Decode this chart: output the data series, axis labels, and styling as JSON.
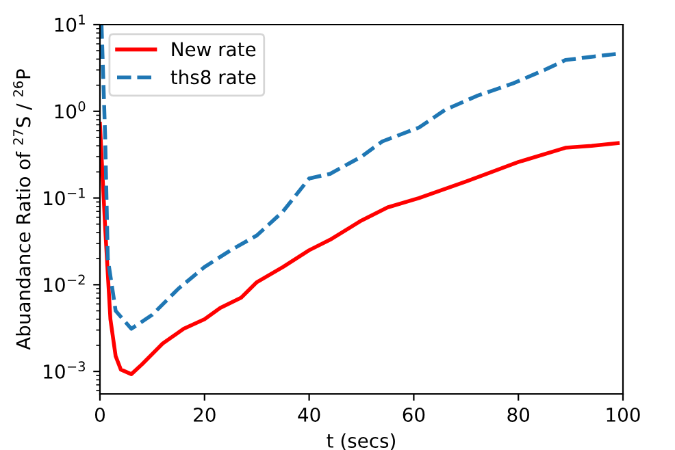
{
  "chart_data": {
    "type": "line",
    "xlabel": "t (secs)",
    "ylabel": "Abuandance Ratio of $^{27}$S / $^{26}$P",
    "log": "y",
    "xlim": [
      0,
      100
    ],
    "ylim": [
      0.00055,
      10
    ],
    "xticks": [
      0,
      20,
      40,
      60,
      80,
      100
    ],
    "yticks": [
      {
        "value": 0.001,
        "label": "10$^{−3}$"
      },
      {
        "value": 0.01,
        "label": "10$^{−2}$"
      },
      {
        "value": 0.1,
        "label": "10$^{−1}$"
      },
      {
        "value": 1,
        "label": "10$^{0}$"
      },
      {
        "value": 10,
        "label": "10$^{1}$"
      }
    ],
    "legend": "top left",
    "grid": false,
    "series": [
      {
        "name": "New rate",
        "color": "#ff0000",
        "line_style": "solid",
        "x": [
          0,
          1,
          2,
          3,
          4,
          6,
          8,
          12,
          16,
          20,
          23,
          27,
          30,
          35,
          40,
          44,
          50,
          55,
          61,
          70,
          80,
          89,
          94,
          99
        ],
        "values": [
          0.72,
          0.045,
          0.004,
          0.0015,
          0.00105,
          0.00093,
          0.0012,
          0.0021,
          0.0031,
          0.004,
          0.0054,
          0.0071,
          0.0107,
          0.016,
          0.025,
          0.033,
          0.055,
          0.078,
          0.1,
          0.155,
          0.26,
          0.38,
          0.4,
          0.43
        ]
      },
      {
        "name": "ths8 rate",
        "color": "#1f77b4",
        "line_style": "dashed",
        "x": [
          0.3,
          1,
          1.5,
          3,
          6,
          10,
          15,
          20,
          25,
          30,
          35,
          40,
          44,
          50,
          54,
          61,
          66,
          72,
          79,
          85,
          89,
          94.6,
          99
        ],
        "values": [
          10,
          0.5,
          0.02,
          0.005,
          0.0031,
          0.0045,
          0.009,
          0.016,
          0.025,
          0.037,
          0.07,
          0.168,
          0.19,
          0.3,
          0.45,
          0.65,
          1.04,
          1.5,
          2.1,
          3.0,
          3.9,
          4.3,
          4.6
        ]
      }
    ]
  }
}
